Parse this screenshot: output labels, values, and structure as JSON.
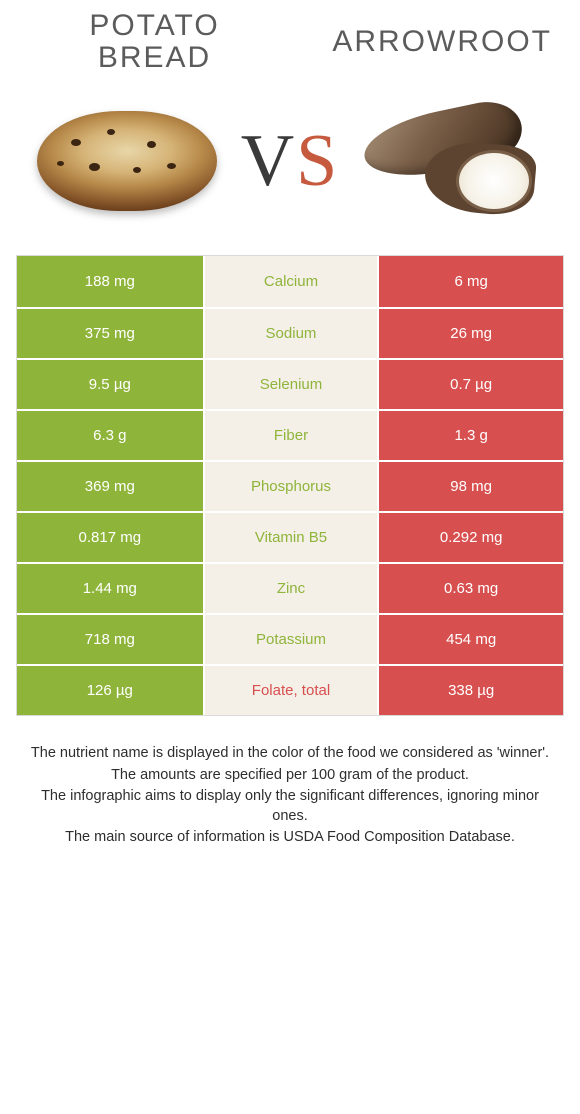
{
  "titles": {
    "left": "POTATO\nBREAD",
    "right": "ARROWROOT"
  },
  "vs": {
    "v": "V",
    "s": "S"
  },
  "colors": {
    "left": "#8fb43a",
    "right": "#d84f4f",
    "mid_bg": "#f4f0e8",
    "row_border": "#ffffff",
    "table_border": "#d9d9d9"
  },
  "table": {
    "rows": [
      {
        "left": "188 mg",
        "mid": "Calcium",
        "right": "6 mg",
        "winner": "left"
      },
      {
        "left": "375 mg",
        "mid": "Sodium",
        "right": "26 mg",
        "winner": "left"
      },
      {
        "left": "9.5 µg",
        "mid": "Selenium",
        "right": "0.7 µg",
        "winner": "left"
      },
      {
        "left": "6.3 g",
        "mid": "Fiber",
        "right": "1.3 g",
        "winner": "left"
      },
      {
        "left": "369 mg",
        "mid": "Phosphorus",
        "right": "98 mg",
        "winner": "left"
      },
      {
        "left": "0.817 mg",
        "mid": "Vitamin B5",
        "right": "0.292 mg",
        "winner": "left"
      },
      {
        "left": "1.44 mg",
        "mid": "Zinc",
        "right": "0.63 mg",
        "winner": "left"
      },
      {
        "left": "718 mg",
        "mid": "Potassium",
        "right": "454 mg",
        "winner": "left"
      },
      {
        "left": "126 µg",
        "mid": "Folate, total",
        "right": "338 µg",
        "winner": "right"
      }
    ]
  },
  "footer": {
    "lines": [
      "The nutrient name is displayed in the color of the food we considered as 'winner'.",
      "The amounts are specified per 100 gram of the product.",
      "The infographic aims to display only the significant differences, ignoring minor ones.",
      "The main source of information is USDA Food Composition Database."
    ]
  },
  "fonts": {
    "title_size": 30,
    "cell_size": 15,
    "footer_size": 14.5,
    "vs_size": 74
  }
}
